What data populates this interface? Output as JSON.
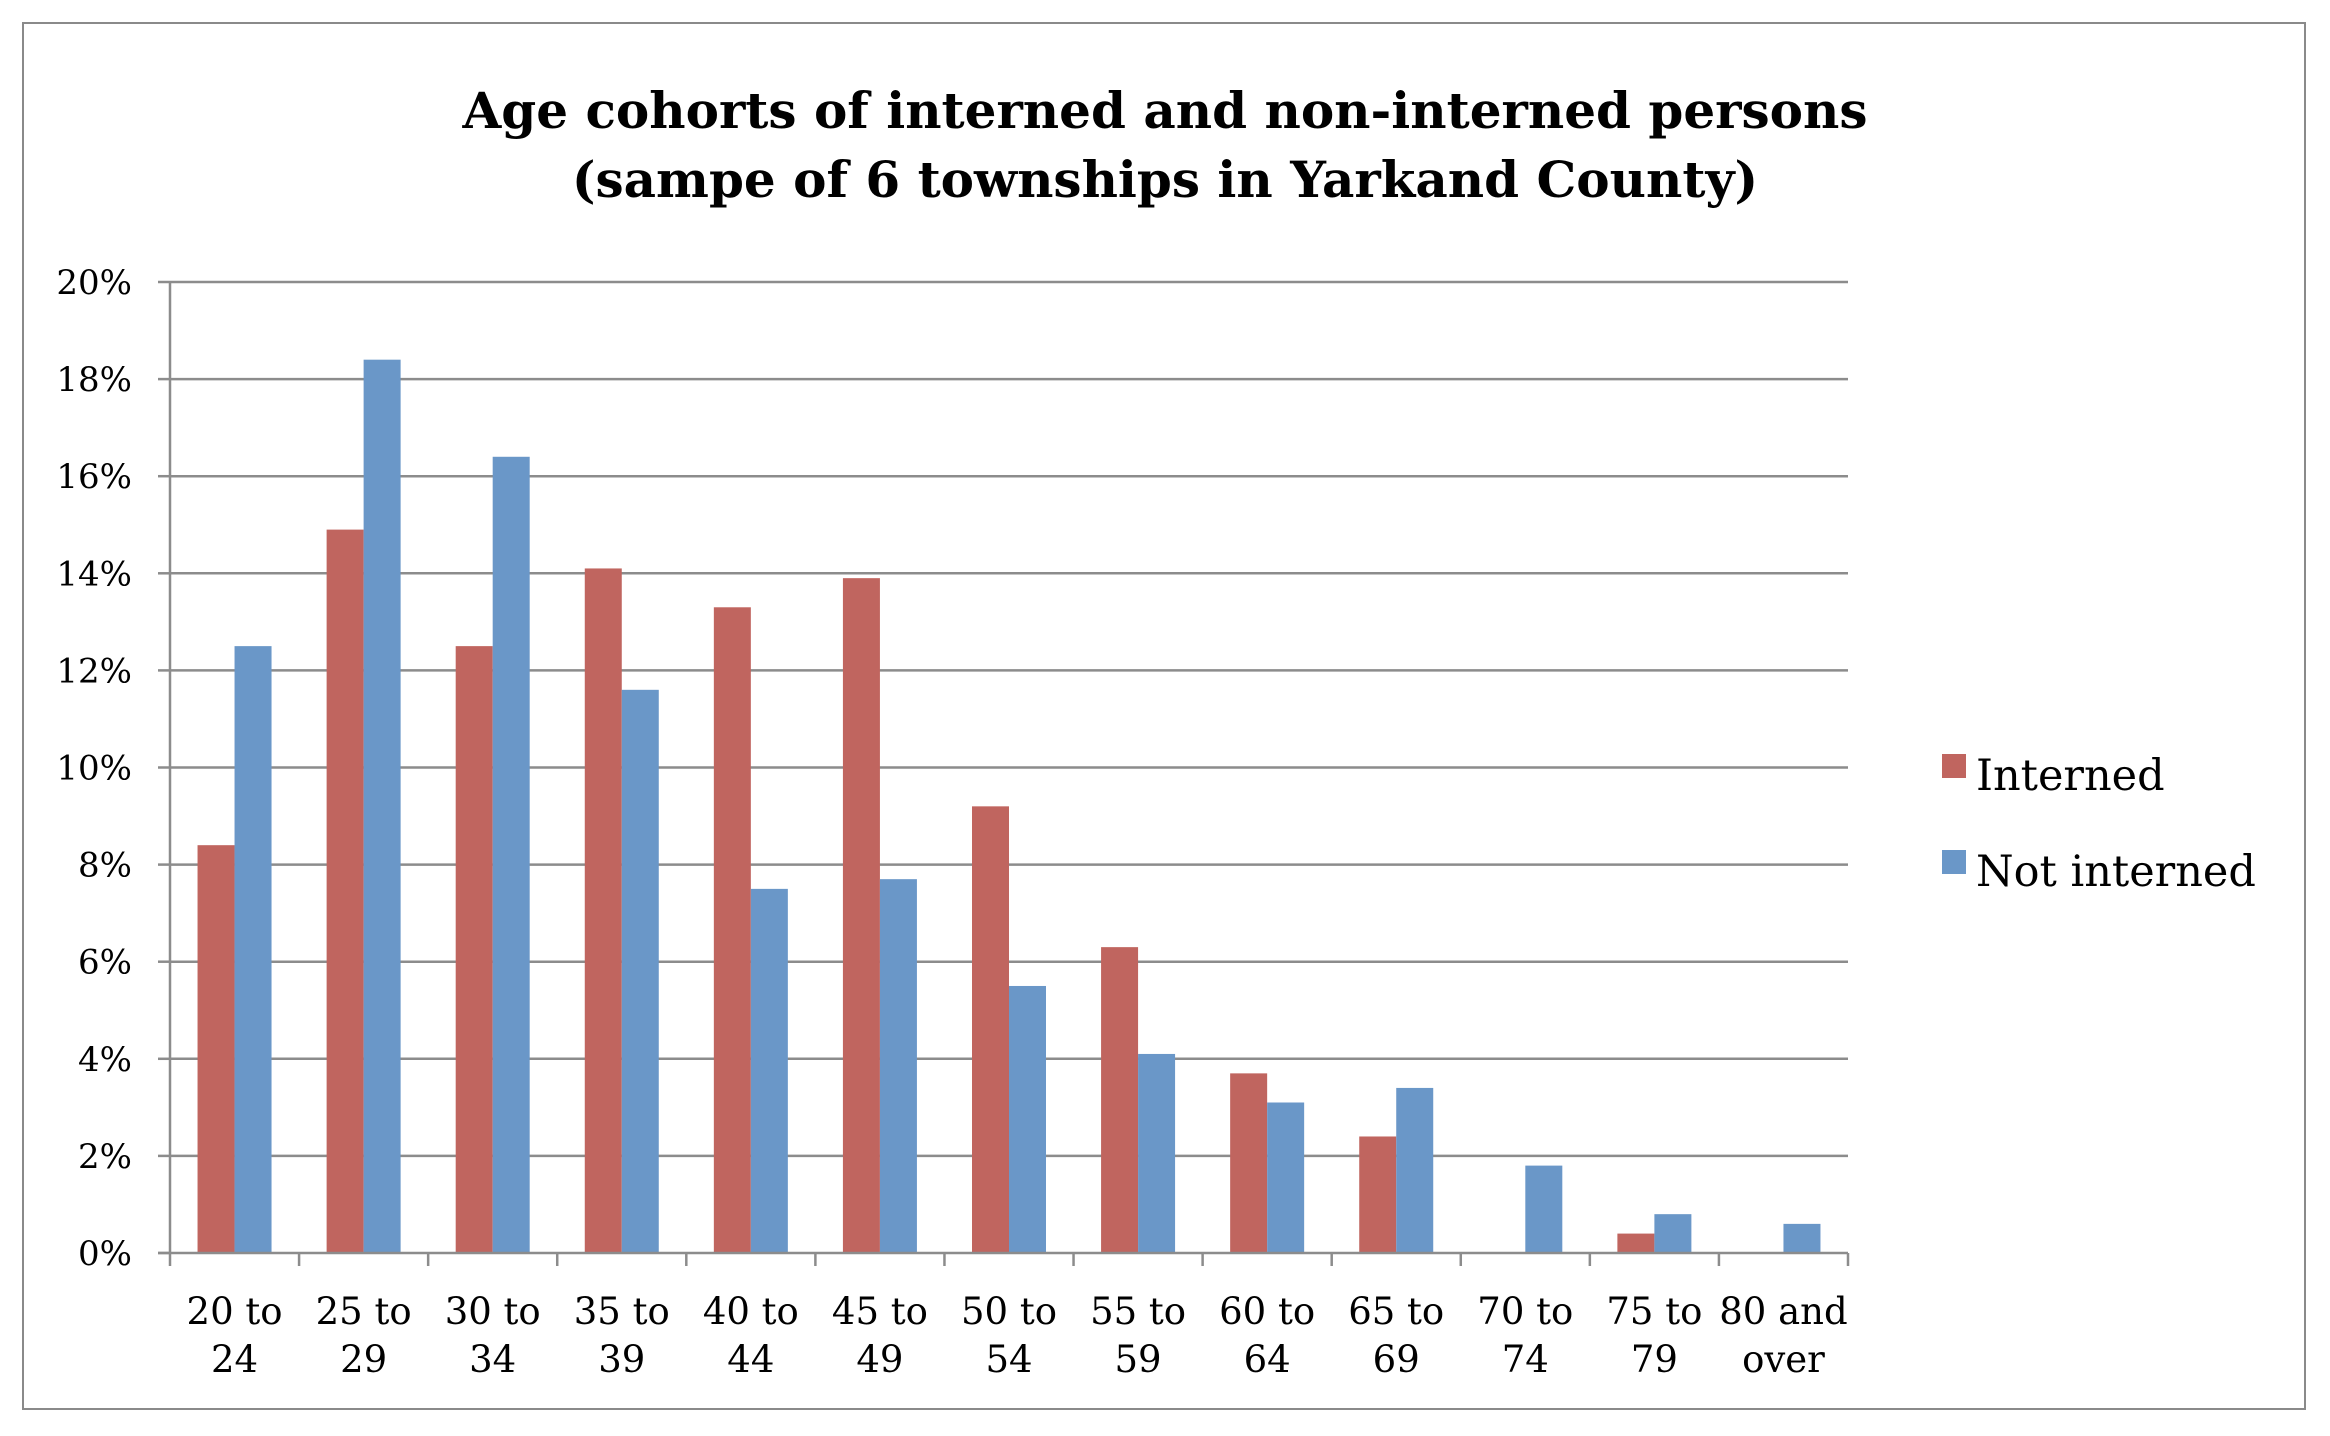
{
  "chart_data": {
    "type": "bar",
    "title": [
      "Age cohorts of interned and non-interned persons",
      "(sampe of 6 townships in Yarkand  County)"
    ],
    "categories": [
      [
        "20 to",
        "24"
      ],
      [
        "25 to",
        "29"
      ],
      [
        "30 to",
        "34"
      ],
      [
        "35 to",
        "39"
      ],
      [
        "40 to",
        "44"
      ],
      [
        "45 to",
        "49"
      ],
      [
        "50 to",
        "54"
      ],
      [
        "55 to",
        "59"
      ],
      [
        "60 to",
        "64"
      ],
      [
        "65 to",
        "69"
      ],
      [
        "70 to",
        "74"
      ],
      [
        "75 to",
        "79"
      ],
      [
        "80 and",
        "over"
      ]
    ],
    "series": [
      {
        "name": "Interned",
        "color": "#c0655f",
        "values": [
          8.4,
          14.9,
          12.5,
          14.1,
          13.3,
          13.9,
          9.2,
          6.3,
          3.7,
          2.4,
          0.0,
          0.4,
          0.0
        ]
      },
      {
        "name": "Not interned",
        "color": "#6a97c8",
        "values": [
          12.5,
          18.4,
          16.4,
          11.6,
          7.5,
          7.7,
          5.5,
          4.1,
          3.1,
          3.4,
          1.8,
          0.8,
          0.6
        ]
      }
    ],
    "ylim": [
      0,
      20
    ],
    "yticks": [
      "0%",
      "2%",
      "4%",
      "6%",
      "8%",
      "10%",
      "12%",
      "14%",
      "16%",
      "18%",
      "20%"
    ],
    "grid": true,
    "legend_position": "right"
  }
}
